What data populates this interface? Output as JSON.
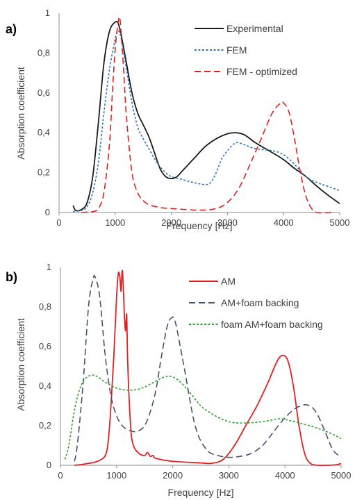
{
  "chart_data": [
    {
      "panel_label": "a)",
      "type": "line",
      "xlabel": "Frequency [Hz]",
      "ylabel": "Absorption coefficient",
      "xlim": [
        0,
        5000
      ],
      "ylim": [
        0,
        1
      ],
      "xticks": [
        "0",
        "1000",
        "2000",
        "3000",
        "4000",
        "5000"
      ],
      "yticks": [
        "0",
        "0,2",
        "0,4",
        "0,6",
        "0,8",
        "1"
      ],
      "grid": false,
      "legend_position": "top-right",
      "series": [
        {
          "name": "Experimental",
          "color": "#1a1a1a",
          "dash": "solid",
          "points": [
            [
              250,
              0.035
            ],
            [
              300,
              0.01
            ],
            [
              400,
              0.015
            ],
            [
              500,
              0.05
            ],
            [
              600,
              0.18
            ],
            [
              700,
              0.45
            ],
            [
              800,
              0.75
            ],
            [
              900,
              0.91
            ],
            [
              1000,
              0.955
            ],
            [
              1050,
              0.95
            ],
            [
              1100,
              0.9
            ],
            [
              1200,
              0.75
            ],
            [
              1300,
              0.6
            ],
            [
              1400,
              0.5
            ],
            [
              1500,
              0.44
            ],
            [
              1600,
              0.38
            ],
            [
              1700,
              0.3
            ],
            [
              1800,
              0.22
            ],
            [
              1900,
              0.18
            ],
            [
              2000,
              0.17
            ],
            [
              2100,
              0.18
            ],
            [
              2200,
              0.21
            ],
            [
              2400,
              0.27
            ],
            [
              2600,
              0.33
            ],
            [
              2800,
              0.37
            ],
            [
              3000,
              0.395
            ],
            [
              3150,
              0.4
            ],
            [
              3300,
              0.39
            ],
            [
              3500,
              0.35
            ],
            [
              3800,
              0.3
            ],
            [
              4000,
              0.265
            ],
            [
              4200,
              0.22
            ],
            [
              4400,
              0.18
            ],
            [
              4600,
              0.13
            ],
            [
              4800,
              0.085
            ],
            [
              5000,
              0.045
            ]
          ]
        },
        {
          "name": "FEM",
          "color": "#2e75b6",
          "dash": "short",
          "points": [
            [
              250,
              0.005
            ],
            [
              400,
              0.01
            ],
            [
              500,
              0.03
            ],
            [
              600,
              0.1
            ],
            [
              700,
              0.25
            ],
            [
              800,
              0.5
            ],
            [
              900,
              0.72
            ],
            [
              1000,
              0.87
            ],
            [
              1050,
              0.91
            ],
            [
              1100,
              0.88
            ],
            [
              1200,
              0.72
            ],
            [
              1300,
              0.55
            ],
            [
              1400,
              0.43
            ],
            [
              1500,
              0.37
            ],
            [
              1600,
              0.32
            ],
            [
              1700,
              0.27
            ],
            [
              1800,
              0.23
            ],
            [
              1900,
              0.2
            ],
            [
              2000,
              0.18
            ],
            [
              2200,
              0.165
            ],
            [
              2400,
              0.15
            ],
            [
              2600,
              0.14
            ],
            [
              2700,
              0.15
            ],
            [
              2800,
              0.2
            ],
            [
              2900,
              0.27
            ],
            [
              3000,
              0.31
            ],
            [
              3150,
              0.35
            ],
            [
              3300,
              0.34
            ],
            [
              3500,
              0.32
            ],
            [
              3800,
              0.31
            ],
            [
              4000,
              0.29
            ],
            [
              4200,
              0.24
            ],
            [
              4400,
              0.18
            ],
            [
              4600,
              0.15
            ],
            [
              4800,
              0.13
            ],
            [
              5000,
              0.11
            ]
          ]
        },
        {
          "name": "FEM - optimized",
          "color": "#e02020",
          "dash": "long",
          "points": [
            [
              400,
              0.0
            ],
            [
              600,
              0.005
            ],
            [
              700,
              0.02
            ],
            [
              800,
              0.1
            ],
            [
              900,
              0.35
            ],
            [
              950,
              0.6
            ],
            [
              1000,
              0.82
            ],
            [
              1050,
              0.95
            ],
            [
              1080,
              0.98
            ],
            [
              1100,
              0.92
            ],
            [
              1150,
              0.72
            ],
            [
              1200,
              0.48
            ],
            [
              1300,
              0.2
            ],
            [
              1400,
              0.1
            ],
            [
              1500,
              0.06
            ],
            [
              1600,
              0.04
            ],
            [
              1800,
              0.025
            ],
            [
              2000,
              0.02
            ],
            [
              2500,
              0.012
            ],
            [
              2800,
              0.02
            ],
            [
              3000,
              0.05
            ],
            [
              3200,
              0.12
            ],
            [
              3400,
              0.24
            ],
            [
              3600,
              0.37
            ],
            [
              3800,
              0.5
            ],
            [
              3950,
              0.55
            ],
            [
              4000,
              0.55
            ],
            [
              4100,
              0.5
            ],
            [
              4200,
              0.36
            ],
            [
              4300,
              0.2
            ],
            [
              4400,
              0.08
            ],
            [
              4500,
              0.02
            ],
            [
              4600,
              0.0
            ],
            [
              4800,
              0.0
            ],
            [
              4900,
              0.005
            ]
          ]
        }
      ]
    },
    {
      "panel_label": "b)",
      "type": "line",
      "xlabel": "Frequency [Hz]",
      "ylabel": "Absorption coefficient",
      "xlim": [
        0,
        5000
      ],
      "ylim": [
        0,
        1
      ],
      "xticks": [
        "0",
        "1000",
        "2000",
        "3000",
        "4000",
        "5000"
      ],
      "yticks": [
        "0",
        "0,2",
        "0,4",
        "0,6",
        "0,8",
        "1"
      ],
      "grid": false,
      "legend_position": "top-right",
      "series": [
        {
          "name": "AM",
          "color": "#e02020",
          "dash": "solid",
          "points": [
            [
              250,
              0.0
            ],
            [
              400,
              0.005
            ],
            [
              600,
              0.015
            ],
            [
              700,
              0.025
            ],
            [
              800,
              0.05
            ],
            [
              850,
              0.12
            ],
            [
              900,
              0.3
            ],
            [
              950,
              0.55
            ],
            [
              1000,
              0.85
            ],
            [
              1030,
              0.97
            ],
            [
              1060,
              0.95
            ],
            [
              1080,
              0.88
            ],
            [
              1100,
              0.985
            ],
            [
              1120,
              0.9
            ],
            [
              1140,
              0.75
            ],
            [
              1160,
              0.68
            ],
            [
              1180,
              0.76
            ],
            [
              1200,
              0.5
            ],
            [
              1250,
              0.2
            ],
            [
              1300,
              0.1
            ],
            [
              1400,
              0.06
            ],
            [
              1500,
              0.05
            ],
            [
              1550,
              0.065
            ],
            [
              1600,
              0.045
            ],
            [
              1650,
              0.05
            ],
            [
              1700,
              0.035
            ],
            [
              2000,
              0.02
            ],
            [
              2500,
              0.012
            ],
            [
              2700,
              0.01
            ],
            [
              2900,
              0.03
            ],
            [
              3100,
              0.1
            ],
            [
              3300,
              0.2
            ],
            [
              3500,
              0.3
            ],
            [
              3700,
              0.42
            ],
            [
              3850,
              0.52
            ],
            [
              3950,
              0.555
            ],
            [
              4050,
              0.53
            ],
            [
              4150,
              0.4
            ],
            [
              4250,
              0.2
            ],
            [
              4350,
              0.06
            ],
            [
              4450,
              0.01
            ],
            [
              4600,
              0.0
            ],
            [
              4900,
              0.002
            ],
            [
              5000,
              0.01
            ]
          ]
        },
        {
          "name": "AM+foam backing",
          "color": "#44546a",
          "dash": "long",
          "points": [
            [
              250,
              0.02
            ],
            [
              300,
              0.1
            ],
            [
              400,
              0.4
            ],
            [
              500,
              0.8
            ],
            [
              580,
              0.94
            ],
            [
              620,
              0.95
            ],
            [
              700,
              0.85
            ],
            [
              800,
              0.55
            ],
            [
              900,
              0.35
            ],
            [
              1000,
              0.25
            ],
            [
              1100,
              0.2
            ],
            [
              1200,
              0.18
            ],
            [
              1300,
              0.17
            ],
            [
              1400,
              0.175
            ],
            [
              1500,
              0.2
            ],
            [
              1600,
              0.27
            ],
            [
              1700,
              0.38
            ],
            [
              1800,
              0.55
            ],
            [
              1900,
              0.7
            ],
            [
              1980,
              0.745
            ],
            [
              2050,
              0.72
            ],
            [
              2200,
              0.5
            ],
            [
              2400,
              0.2
            ],
            [
              2600,
              0.08
            ],
            [
              2800,
              0.05
            ],
            [
              3000,
              0.04
            ],
            [
              3200,
              0.045
            ],
            [
              3400,
              0.06
            ],
            [
              3600,
              0.1
            ],
            [
              3800,
              0.17
            ],
            [
              4000,
              0.24
            ],
            [
              4200,
              0.29
            ],
            [
              4400,
              0.305
            ],
            [
              4550,
              0.27
            ],
            [
              4700,
              0.18
            ],
            [
              4850,
              0.08
            ],
            [
              5000,
              0.04
            ]
          ]
        },
        {
          "name": "foam AM+foam backing",
          "color": "#2ca02c",
          "dash": "short",
          "points": [
            [
              80,
              0.03
            ],
            [
              150,
              0.1
            ],
            [
              250,
              0.28
            ],
            [
              350,
              0.39
            ],
            [
              450,
              0.44
            ],
            [
              600,
              0.455
            ],
            [
              800,
              0.42
            ],
            [
              1000,
              0.39
            ],
            [
              1200,
              0.38
            ],
            [
              1400,
              0.385
            ],
            [
              1600,
              0.41
            ],
            [
              1800,
              0.44
            ],
            [
              1950,
              0.45
            ],
            [
              2100,
              0.43
            ],
            [
              2300,
              0.37
            ],
            [
              2500,
              0.3
            ],
            [
              2700,
              0.26
            ],
            [
              2900,
              0.23
            ],
            [
              3100,
              0.215
            ],
            [
              3400,
              0.215
            ],
            [
              3700,
              0.225
            ],
            [
              3900,
              0.235
            ],
            [
              4100,
              0.225
            ],
            [
              4300,
              0.21
            ],
            [
              4500,
              0.195
            ],
            [
              4700,
              0.175
            ],
            [
              4900,
              0.15
            ],
            [
              5000,
              0.135
            ]
          ]
        }
      ]
    }
  ]
}
